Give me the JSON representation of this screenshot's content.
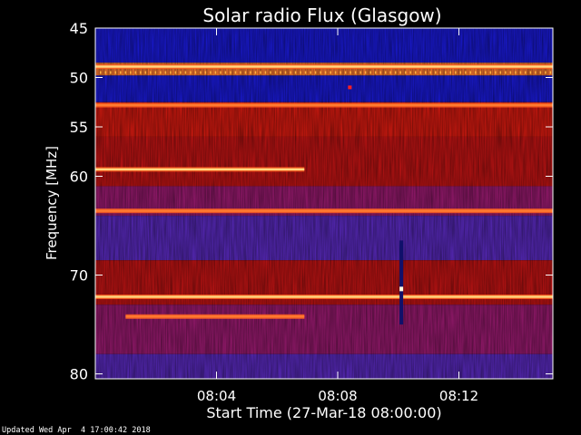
{
  "chart_data": {
    "type": "heatmap",
    "title": "Solar radio Flux (Glasgow)",
    "xlabel": "Start Time (27-Mar-18 08:00:00)",
    "ylabel": "Frequency [MHz]",
    "x_unit": "minutes after 08:00:00",
    "xlim": [
      0,
      15.1
    ],
    "ylim": [
      45,
      80.5
    ],
    "y_inverted": true,
    "x_ticks": [
      {
        "value": 4,
        "label": "08:04"
      },
      {
        "value": 8,
        "label": "08:08"
      },
      {
        "value": 12,
        "label": "08:12"
      }
    ],
    "y_ticks": [
      {
        "value": 45,
        "label": "45"
      },
      {
        "value": 50,
        "label": "50"
      },
      {
        "value": 55,
        "label": "55"
      },
      {
        "value": 60,
        "label": "60"
      },
      {
        "value": 70,
        "label": "70"
      },
      {
        "value": 80,
        "label": "80"
      }
    ],
    "frequency_regions": [
      {
        "from": 45.0,
        "to": 48.5,
        "level": "low"
      },
      {
        "from": 48.5,
        "to": 49.8,
        "level": "high"
      },
      {
        "from": 49.8,
        "to": 52.5,
        "level": "low"
      },
      {
        "from": 52.5,
        "to": 56.0,
        "level": "medium-high"
      },
      {
        "from": 56.0,
        "to": 61.0,
        "level": "medium"
      },
      {
        "from": 61.0,
        "to": 64.0,
        "level": "medium-low"
      },
      {
        "from": 64.0,
        "to": 68.5,
        "level": "low-medium"
      },
      {
        "from": 68.5,
        "to": 73.0,
        "level": "medium"
      },
      {
        "from": 73.0,
        "to": 78.0,
        "level": "medium-low"
      },
      {
        "from": 78.0,
        "to": 80.5,
        "level": "low-medium"
      }
    ],
    "bright_lines": [
      {
        "freq": 48.9,
        "start": 0,
        "end": 15.1,
        "level": "very-high"
      },
      {
        "freq": 52.8,
        "start": 0,
        "end": 15.1,
        "level": "high"
      },
      {
        "freq": 59.3,
        "start": 0,
        "end": 6.9,
        "level": "very-high"
      },
      {
        "freq": 63.5,
        "start": 0,
        "end": 15.1,
        "level": "high"
      },
      {
        "freq": 72.2,
        "start": 0,
        "end": 15.1,
        "level": "very-high"
      },
      {
        "freq": 74.2,
        "start": 1.0,
        "end": 6.9,
        "level": "high"
      }
    ],
    "vertical_burst": {
      "time": 10.1,
      "freq_from": 66.5,
      "freq_to": 75.0
    },
    "colors": {
      "low": "#1a1ae0",
      "medium": "#cc1010",
      "high": "#ffd060",
      "background": "#000000",
      "text": "#ffffff"
    }
  },
  "footer": {
    "updated": "Updated Wed Apr  4 17:00:42 2018"
  }
}
